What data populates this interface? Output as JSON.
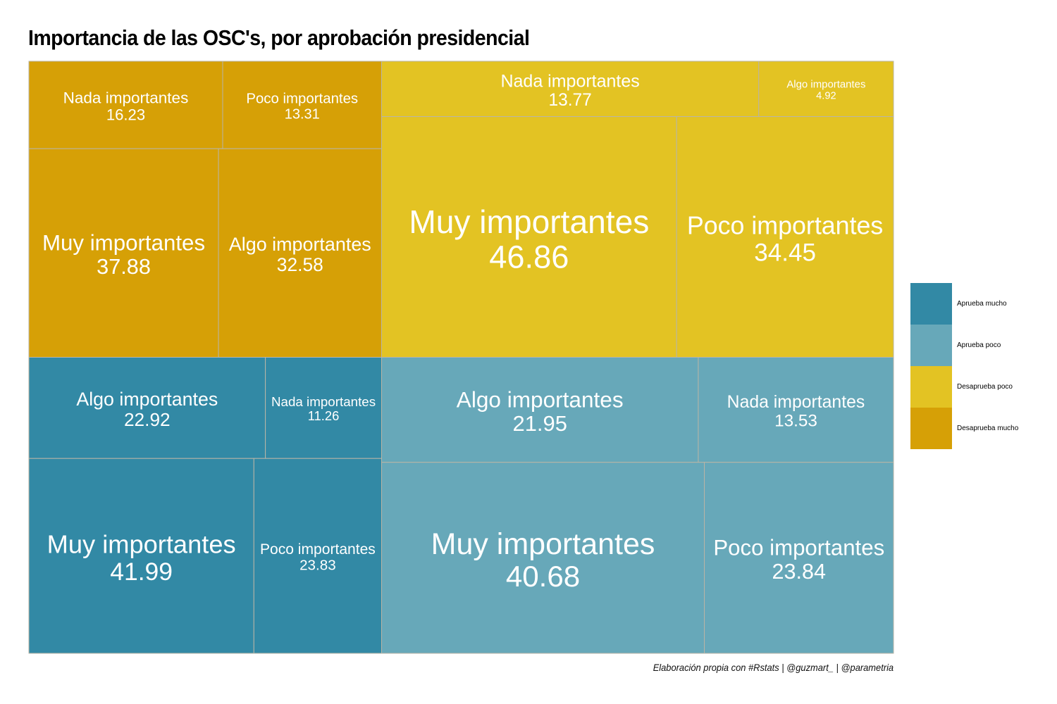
{
  "chart_data": {
    "type": "treemap",
    "title": "Importancia de las OSC's, por aprobación presidencial",
    "caption": "Elaboración propia con #Rstats | @guzmart_ | @parametria",
    "groups": [
      {
        "name": "Desaprueba mucho",
        "color": "#D6A006",
        "items": [
          {
            "label": "Muy importantes",
            "value": 37.88
          },
          {
            "label": "Algo importantes",
            "value": 32.58
          },
          {
            "label": "Nada importantes",
            "value": 16.23
          },
          {
            "label": "Poco importantes",
            "value": 13.31
          }
        ]
      },
      {
        "name": "Desaprueba poco",
        "color": "#E3C323",
        "items": [
          {
            "label": "Muy importantes",
            "value": 46.86
          },
          {
            "label": "Poco importantes",
            "value": 34.45
          },
          {
            "label": "Nada importantes",
            "value": 13.77
          },
          {
            "label": "Algo importantes",
            "value": 4.92
          }
        ]
      },
      {
        "name": "Aprueba mucho",
        "color": "#3289A5",
        "items": [
          {
            "label": "Muy importantes",
            "value": 41.99
          },
          {
            "label": "Poco importantes",
            "value": 23.83
          },
          {
            "label": "Algo importantes",
            "value": 22.92
          },
          {
            "label": "Nada importantes",
            "value": 11.26
          }
        ]
      },
      {
        "name": "Aprueba poco",
        "color": "#67A8B9",
        "items": [
          {
            "label": "Muy importantes",
            "value": 40.68
          },
          {
            "label": "Poco importantes",
            "value": 23.84
          },
          {
            "label": "Algo importantes",
            "value": 21.95
          },
          {
            "label": "Nada importantes",
            "value": 13.53
          }
        ]
      }
    ],
    "legend": {
      "position": "right",
      "entries": [
        {
          "label": "Aprueba mucho",
          "color": "#3289A5"
        },
        {
          "label": "Aprueba poco",
          "color": "#67A8B9"
        },
        {
          "label": "Desaprueba poco",
          "color": "#E3C323"
        },
        {
          "label": "Desaprueba mucho",
          "color": "#D6A006"
        }
      ]
    }
  }
}
